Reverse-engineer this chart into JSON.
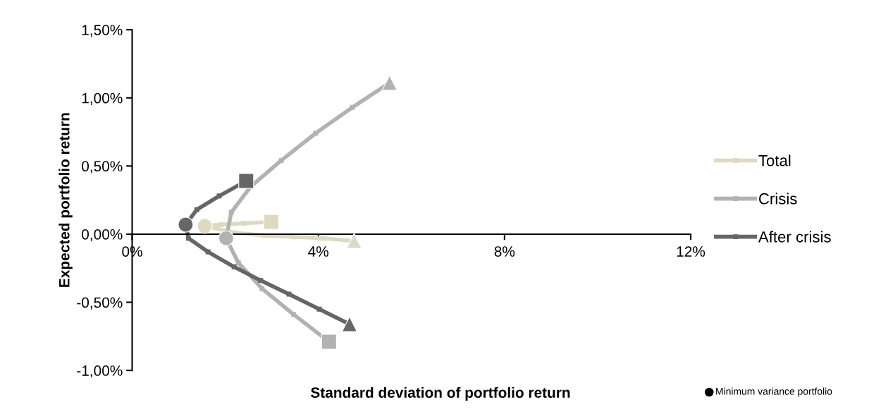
{
  "chart_data": {
    "type": "line",
    "xlabel": "Standard deviation of portfolio return",
    "ylabel": "Expected portfolio return",
    "xlim": [
      0,
      12
    ],
    "ylim": [
      -1.0,
      1.5
    ],
    "xticks": [
      {
        "value": 0,
        "label": "0%"
      },
      {
        "value": 4,
        "label": "4%"
      },
      {
        "value": 8,
        "label": "8%"
      },
      {
        "value": 12,
        "label": "12%"
      }
    ],
    "yticks": [
      {
        "value": -1.0,
        "label": "-1,00%"
      },
      {
        "value": -0.5,
        "label": "-0,50%"
      },
      {
        "value": 0,
        "label": "0,00%"
      },
      {
        "value": 0.5,
        "label": "0,50%"
      },
      {
        "value": 1.0,
        "label": "1,00%"
      },
      {
        "value": 1.5,
        "label": "1,50%"
      }
    ],
    "grid": false,
    "legend": "right",
    "marker": "square",
    "line_style": "solid",
    "series": [
      {
        "name": "Total",
        "color": "#ddd9c3",
        "x": [
          2.99,
          2.4,
          1.91,
          1.56,
          2.21,
          2.84,
          3.47,
          4.09,
          4.77
        ],
        "values": [
          0.09,
          0.08,
          0.07,
          0.06,
          0.01,
          -0.01,
          -0.02,
          -0.03,
          -0.05
        ]
      },
      {
        "name": "Crisis",
        "color": "#b2b2b2",
        "x": [
          4.23,
          3.47,
          2.79,
          2.28,
          2.02,
          2.13,
          2.55,
          3.2,
          3.94,
          4.73,
          5.53
        ],
        "values": [
          -0.79,
          -0.59,
          -0.4,
          -0.21,
          -0.03,
          0.16,
          0.35,
          0.54,
          0.74,
          0.93,
          1.11
        ]
      },
      {
        "name": "After crisis",
        "color": "#666666",
        "x": [
          2.45,
          1.87,
          1.39,
          1.15,
          1.21,
          1.63,
          2.19,
          2.76,
          3.37,
          4.02,
          4.67
        ],
        "values": [
          0.39,
          0.28,
          0.18,
          0.07,
          -0.03,
          -0.13,
          -0.24,
          -0.34,
          -0.44,
          -0.55,
          -0.66
        ]
      },
      {
        "type": "scatter",
        "marker": "square",
        "x": [
          2.99,
          4.23,
          2.45
        ],
        "values": [
          0.09,
          -0.79,
          0.39
        ],
        "colors": [
          "#ddd9c3",
          "#b2b2b2",
          "#666666"
        ]
      },
      {
        "type": "scatter",
        "marker": "triangle",
        "x": [
          4.77,
          5.53,
          4.67
        ],
        "values": [
          -0.05,
          1.11,
          -0.66
        ],
        "colors": [
          "#ddd9c3",
          "#b2b2b2",
          "#666666"
        ]
      },
      {
        "type": "scatter",
        "marker": "circle",
        "x": [
          1.56,
          2.02,
          1.15
        ],
        "values": [
          0.06,
          -0.03,
          0.07
        ],
        "colors": [
          "#ddd9c3",
          "#b2b2b2",
          "#666666"
        ]
      }
    ],
    "annotations": [
      "Minimum variance portfolio"
    ]
  }
}
